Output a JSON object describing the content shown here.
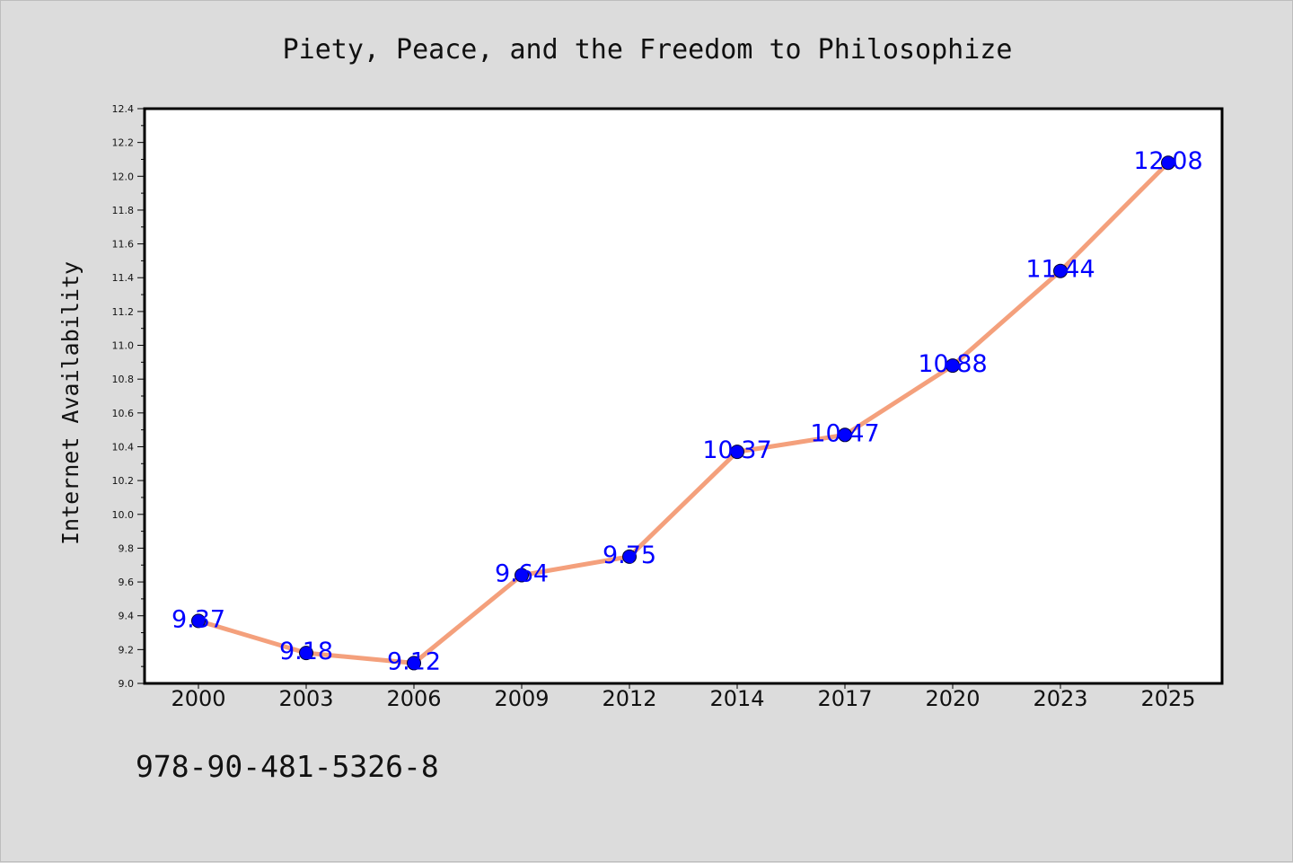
{
  "chart_data": {
    "type": "line",
    "title": "Piety, Peace, and the Freedom to Philosophize",
    "xlabel": "",
    "ylabel": "Internet Availability",
    "categories": [
      "2000",
      "2003",
      "2006",
      "2009",
      "2012",
      "2014",
      "2017",
      "2020",
      "2023",
      "2025"
    ],
    "series": [
      {
        "values": [
          9.37,
          9.18,
          9.12,
          9.64,
          9.75,
          10.37,
          10.47,
          10.88,
          11.44,
          12.08
        ],
        "labels": [
          "9.37",
          "9.18",
          "9.12",
          "9.64",
          "9.75",
          "10.37",
          "10.47",
          "10.88",
          "11.44",
          "12.08"
        ]
      }
    ],
    "ylim": [
      9.0,
      12.4
    ],
    "y_ticks": [
      "9.0",
      "9.2",
      "9.4",
      "9.6",
      "9.8",
      "10.0",
      "10.2",
      "10.4",
      "10.6",
      "10.8",
      "11.0",
      "11.2",
      "11.4",
      "11.6",
      "11.8",
      "12.0",
      "12.2",
      "12.4"
    ],
    "grid": false,
    "legend": "none",
    "colors": {
      "line": "#f4a07c",
      "marker": "#0000ff",
      "marker_edge": "#000033",
      "data_label": "#0000ff",
      "plot_background": "#ffffff",
      "figure_background": "#dcdcdc"
    }
  },
  "footer_text": "978-90-481-5326-8"
}
